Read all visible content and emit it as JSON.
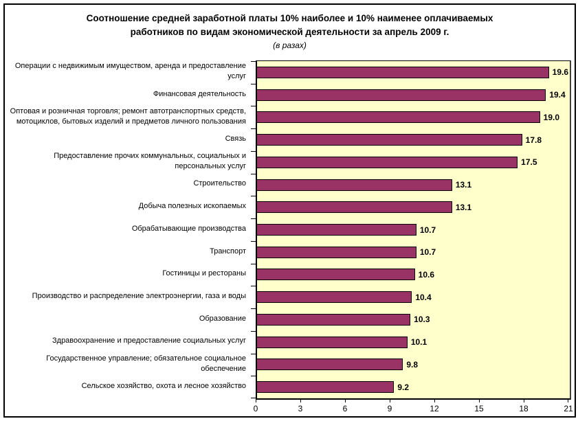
{
  "chart": {
    "title_lines": [
      "Соотношение средней заработной платы 10% наиболее  и 10% наименее оплачиваемых",
      "работников по видам экономической деятельности за апрель 2009 г."
    ],
    "subtitle": "(в разах)"
  },
  "chart_data": {
    "type": "bar",
    "orientation": "horizontal",
    "title": "Соотношение средней заработной платы 10% наиболее  и 10% наименее оплачиваемых работников по видам экономической деятельности за апрель 2009 г.",
    "subtitle": "(в разах)",
    "categories": [
      "Операции с недвижимым имуществом, аренда и предоставление услуг",
      "Финансовая деятельность",
      "Оптовая и розничная торговля; ремонт автотранспортных средств, мотоциклов, бытовых изделий и предметов личного пользования",
      "Связь",
      "Предоставление прочих коммунальных, социальных и персональных услуг",
      "Строительство",
      "Добыча полезных ископаемых",
      "Обрабатывающие производства",
      "Транспорт",
      "Гостиницы и рестораны",
      "Производство и распределение электроэнергии, газа и воды",
      "Образование",
      "Здравоохранение и предоставление социальных услуг",
      "Государственное управление; обязательное социальное обеспечение",
      "Сельское хозяйство, охота и лесное хозяйство"
    ],
    "values": [
      19.6,
      19.4,
      19.0,
      17.8,
      17.5,
      13.1,
      13.1,
      10.7,
      10.7,
      10.6,
      10.4,
      10.3,
      10.1,
      9.8,
      9.2
    ],
    "value_labels": [
      "19.6",
      "19.4",
      "19.0",
      "17.8",
      "17.5",
      "13.1",
      "13.1",
      "10.7",
      "10.7",
      "10.6",
      "10.4",
      "10.3",
      "10.1",
      "9.8",
      "9.2"
    ],
    "xlabel": "",
    "ylabel": "",
    "xlim": [
      0,
      21
    ],
    "xticks": [
      0,
      3,
      6,
      9,
      12,
      15,
      18,
      21
    ],
    "grid": false,
    "legend": false,
    "bar_color": "#993366",
    "bar_border_color": "#000000",
    "plot_bg": "#FFFFCC",
    "label_color": "#000000"
  }
}
